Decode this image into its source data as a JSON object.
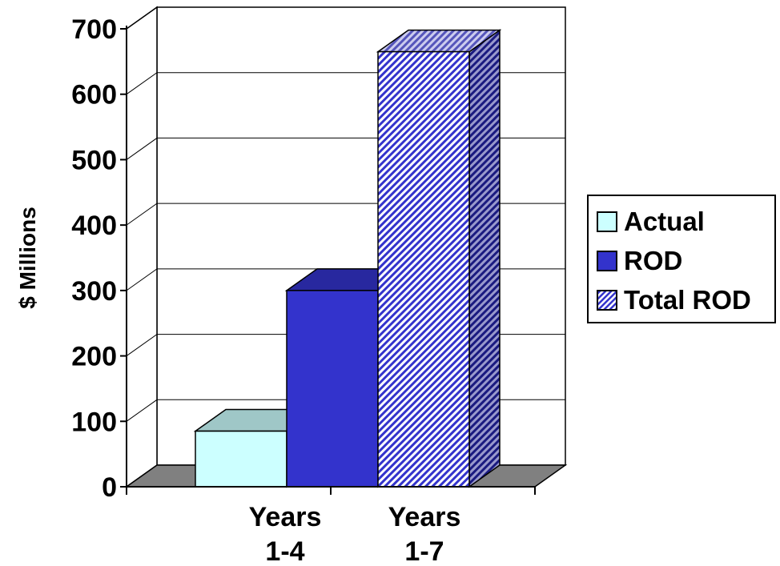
{
  "chart_data": {
    "type": "bar",
    "ylabel": "$ Millions",
    "ylim": [
      0,
      700
    ],
    "yticks": [
      "0",
      "100",
      "200",
      "300",
      "400",
      "500",
      "600",
      "700"
    ],
    "categories": [
      {
        "line1": "Years",
        "line2": "1-4"
      },
      {
        "line1": "Years",
        "line2": "1-7"
      }
    ],
    "bars": [
      {
        "series": "Actual",
        "category_index": 0,
        "value": 85
      },
      {
        "series": "ROD",
        "category_index": 0,
        "value": 300
      },
      {
        "series": "Total ROD",
        "category_index": 1,
        "value": 665
      }
    ],
    "series": [
      {
        "name": "Actual",
        "color": "#ccffff",
        "pattern": "solid"
      },
      {
        "name": "ROD",
        "color": "#3333cc",
        "pattern": "solid"
      },
      {
        "name": "Total ROD",
        "color": "#3333cc",
        "pattern": "diagonal-hatch"
      }
    ],
    "legend_position": "right",
    "grid": true,
    "three_d": true,
    "floor_color": "#808080"
  }
}
